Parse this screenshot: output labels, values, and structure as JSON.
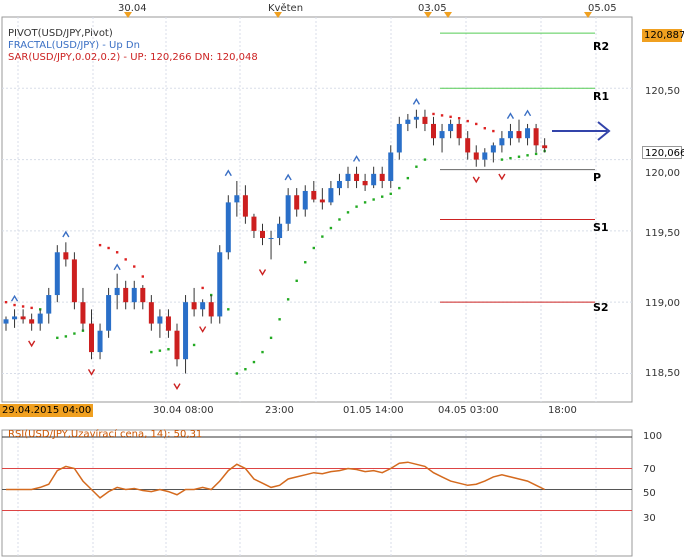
{
  "chart_data": {
    "type": "candlestick",
    "instrument": "USD/JPY",
    "top_axis_labels": [
      "30.04",
      "Květen",
      "03.05",
      "05.05"
    ],
    "x_tick_labels": [
      "29.04.2015 04:00",
      "30.04 08:00",
      "23:00",
      "01.05 14:00",
      "04.05 03:00",
      "18:00"
    ],
    "y_tick_labels": [
      "120,50",
      "120,00",
      "119,50",
      "119,00",
      "118,50"
    ],
    "price_tags": {
      "high": "120,887",
      "last": "120,066"
    },
    "ylim": [
      118.3,
      121.0
    ],
    "legend": [
      {
        "text": "PIVOT(USD/JPY,Pivot)",
        "color": "#333333"
      },
      {
        "text": "FRACTAL(USD/JPY) -  Up  Dn",
        "color": "#3a6fc4"
      },
      {
        "text": "SAR(USD/JPY,0.02,0.2) -  UP: 120,266  DN: 120,048",
        "color": "#cc2222"
      }
    ],
    "pivot_levels": [
      {
        "name": "R2",
        "value": 120.887,
        "color": "#55cc55"
      },
      {
        "name": "R1",
        "value": 120.5,
        "color": "#55cc55"
      },
      {
        "name": "P",
        "value": 119.93,
        "color": "#666666"
      },
      {
        "name": "S1",
        "value": 119.58,
        "color": "#cc2222"
      },
      {
        "name": "S2",
        "value": 119.0,
        "color": "#cc2222"
      }
    ],
    "candles": [
      [
        118.85,
        118.9,
        118.8,
        118.88
      ],
      [
        118.88,
        118.95,
        118.82,
        118.9
      ],
      [
        118.9,
        118.95,
        118.85,
        118.88
      ],
      [
        118.88,
        118.92,
        118.8,
        118.85
      ],
      [
        118.85,
        118.95,
        118.8,
        118.92
      ],
      [
        118.92,
        119.1,
        118.85,
        119.05
      ],
      [
        119.05,
        119.4,
        119.0,
        119.35
      ],
      [
        119.35,
        119.42,
        119.25,
        119.3
      ],
      [
        119.3,
        119.35,
        118.95,
        119.0
      ],
      [
        119.0,
        119.1,
        118.8,
        118.85
      ],
      [
        118.85,
        118.95,
        118.6,
        118.65
      ],
      [
        118.65,
        118.85,
        118.6,
        118.8
      ],
      [
        118.8,
        119.1,
        118.75,
        119.05
      ],
      [
        119.05,
        119.2,
        118.95,
        119.1
      ],
      [
        119.1,
        119.15,
        118.95,
        119.0
      ],
      [
        119.0,
        119.15,
        118.95,
        119.1
      ],
      [
        119.1,
        119.12,
        118.95,
        119.0
      ],
      [
        119.0,
        119.05,
        118.8,
        118.85
      ],
      [
        118.85,
        118.95,
        118.75,
        118.9
      ],
      [
        118.9,
        118.95,
        118.75,
        118.8
      ],
      [
        118.8,
        118.85,
        118.55,
        118.6
      ],
      [
        118.6,
        119.05,
        118.5,
        119.0
      ],
      [
        119.0,
        119.1,
        118.9,
        118.95
      ],
      [
        118.95,
        119.02,
        118.9,
        119.0
      ],
      [
        119.0,
        119.05,
        118.85,
        118.9
      ],
      [
        118.9,
        119.4,
        118.85,
        119.35
      ],
      [
        119.35,
        119.75,
        119.3,
        119.7
      ],
      [
        119.7,
        119.85,
        119.6,
        119.75
      ],
      [
        119.75,
        119.82,
        119.55,
        119.6
      ],
      [
        119.6,
        119.62,
        119.45,
        119.5
      ],
      [
        119.5,
        119.55,
        119.4,
        119.45
      ],
      [
        119.45,
        119.5,
        119.3,
        119.45
      ],
      [
        119.45,
        119.6,
        119.4,
        119.55
      ],
      [
        119.55,
        119.8,
        119.5,
        119.75
      ],
      [
        119.75,
        119.8,
        119.6,
        119.65
      ],
      [
        119.65,
        119.82,
        119.6,
        119.78
      ],
      [
        119.78,
        119.85,
        119.7,
        119.72
      ],
      [
        119.72,
        119.8,
        119.65,
        119.7
      ],
      [
        119.7,
        119.85,
        119.68,
        119.8
      ],
      [
        119.8,
        119.9,
        119.75,
        119.85
      ],
      [
        119.85,
        119.95,
        119.8,
        119.9
      ],
      [
        119.9,
        119.95,
        119.8,
        119.85
      ],
      [
        119.85,
        119.9,
        119.78,
        119.82
      ],
      [
        119.82,
        119.95,
        119.8,
        119.9
      ],
      [
        119.9,
        119.95,
        119.8,
        119.85
      ],
      [
        119.85,
        120.1,
        119.8,
        120.05
      ],
      [
        120.05,
        120.3,
        120.0,
        120.25
      ],
      [
        120.25,
        120.32,
        120.2,
        120.28
      ],
      [
        120.28,
        120.35,
        120.22,
        120.3
      ],
      [
        120.3,
        120.35,
        120.2,
        120.25
      ],
      [
        120.25,
        120.3,
        120.1,
        120.15
      ],
      [
        120.15,
        120.25,
        120.05,
        120.2
      ],
      [
        120.2,
        120.28,
        120.15,
        120.25
      ],
      [
        120.25,
        120.28,
        120.1,
        120.15
      ],
      [
        120.15,
        120.2,
        120.0,
        120.05
      ],
      [
        120.05,
        120.1,
        119.95,
        120.0
      ],
      [
        120.0,
        120.08,
        119.95,
        120.05
      ],
      [
        120.05,
        120.12,
        119.98,
        120.1
      ],
      [
        120.1,
        120.2,
        120.05,
        120.15
      ],
      [
        120.15,
        120.25,
        120.1,
        120.2
      ],
      [
        120.2,
        120.28,
        120.12,
        120.15
      ],
      [
        120.15,
        120.25,
        120.1,
        120.22
      ],
      [
        120.22,
        120.25,
        120.05,
        120.1
      ],
      [
        120.1,
        120.15,
        120.05,
        120.08
      ]
    ],
    "sar_points": [
      [
        0,
        119.0
      ],
      [
        1,
        118.98
      ],
      [
        2,
        118.97
      ],
      [
        3,
        118.96
      ],
      [
        4,
        118.95
      ],
      [
        5,
        118.94
      ],
      [
        6,
        118.75
      ],
      [
        7,
        118.76
      ],
      [
        8,
        118.78
      ],
      [
        9,
        118.8
      ],
      [
        10,
        118.83
      ],
      [
        11,
        119.4
      ],
      [
        12,
        119.38
      ],
      [
        13,
        119.35
      ],
      [
        14,
        119.3
      ],
      [
        15,
        119.25
      ],
      [
        16,
        119.18
      ],
      [
        17,
        118.65
      ],
      [
        18,
        118.66
      ],
      [
        19,
        118.67
      ],
      [
        20,
        118.68
      ],
      [
        21,
        118.69
      ],
      [
        22,
        118.7
      ],
      [
        23,
        119.1
      ],
      [
        24,
        119.05
      ],
      [
        25,
        119.0
      ],
      [
        26,
        118.95
      ],
      [
        27,
        118.5
      ],
      [
        28,
        118.53
      ],
      [
        29,
        118.58
      ],
      [
        30,
        118.65
      ],
      [
        31,
        118.75
      ],
      [
        32,
        118.88
      ],
      [
        33,
        119.02
      ],
      [
        34,
        119.15
      ],
      [
        35,
        119.28
      ],
      [
        36,
        119.38
      ],
      [
        37,
        119.46
      ],
      [
        38,
        119.52
      ],
      [
        39,
        119.58
      ],
      [
        40,
        119.63
      ],
      [
        41,
        119.67
      ],
      [
        42,
        119.7
      ],
      [
        43,
        119.72
      ],
      [
        44,
        119.74
      ],
      [
        45,
        119.76
      ],
      [
        46,
        119.8
      ],
      [
        47,
        119.87
      ],
      [
        48,
        119.95
      ],
      [
        49,
        120.0
      ],
      [
        50,
        120.32
      ],
      [
        51,
        120.31
      ],
      [
        52,
        120.3
      ],
      [
        53,
        120.29
      ],
      [
        54,
        120.27
      ],
      [
        55,
        120.25
      ],
      [
        56,
        120.22
      ],
      [
        57,
        120.2
      ],
      [
        58,
        120.0
      ],
      [
        59,
        120.01
      ],
      [
        60,
        120.02
      ],
      [
        61,
        120.03
      ],
      [
        62,
        120.04
      ],
      [
        63,
        120.06
      ]
    ],
    "fractals_up": [
      [
        1,
        119.0
      ],
      [
        7,
        119.45
      ],
      [
        13,
        119.22
      ],
      [
        26,
        119.88
      ],
      [
        33,
        119.85
      ],
      [
        41,
        119.98
      ],
      [
        48,
        120.38
      ],
      [
        59,
        120.28
      ],
      [
        61,
        120.3
      ]
    ],
    "fractals_down": [
      [
        3,
        118.75
      ],
      [
        10,
        118.55
      ],
      [
        20,
        118.45
      ],
      [
        23,
        118.85
      ],
      [
        30,
        119.25
      ],
      [
        55,
        119.9
      ],
      [
        58,
        119.92
      ]
    ],
    "rsi": {
      "label": "RSI(USD/JPY,Uzavírací cena, 14): 50,31",
      "y_tick_labels": [
        "100",
        "70",
        "50",
        "30"
      ],
      "ylim": [
        0,
        100
      ],
      "values": [
        50,
        50,
        50,
        50,
        52,
        55,
        68,
        72,
        70,
        58,
        50,
        42,
        48,
        52,
        50,
        51,
        49,
        48,
        50,
        48,
        45,
        50,
        50,
        52,
        50,
        58,
        68,
        74,
        70,
        60,
        56,
        52,
        54,
        60,
        62,
        64,
        66,
        65,
        67,
        68,
        70,
        69,
        67,
        68,
        66,
        70,
        75,
        76,
        74,
        72,
        66,
        62,
        58,
        56,
        54,
        55,
        58,
        62,
        64,
        62,
        60,
        58,
        54,
        50
      ]
    }
  }
}
